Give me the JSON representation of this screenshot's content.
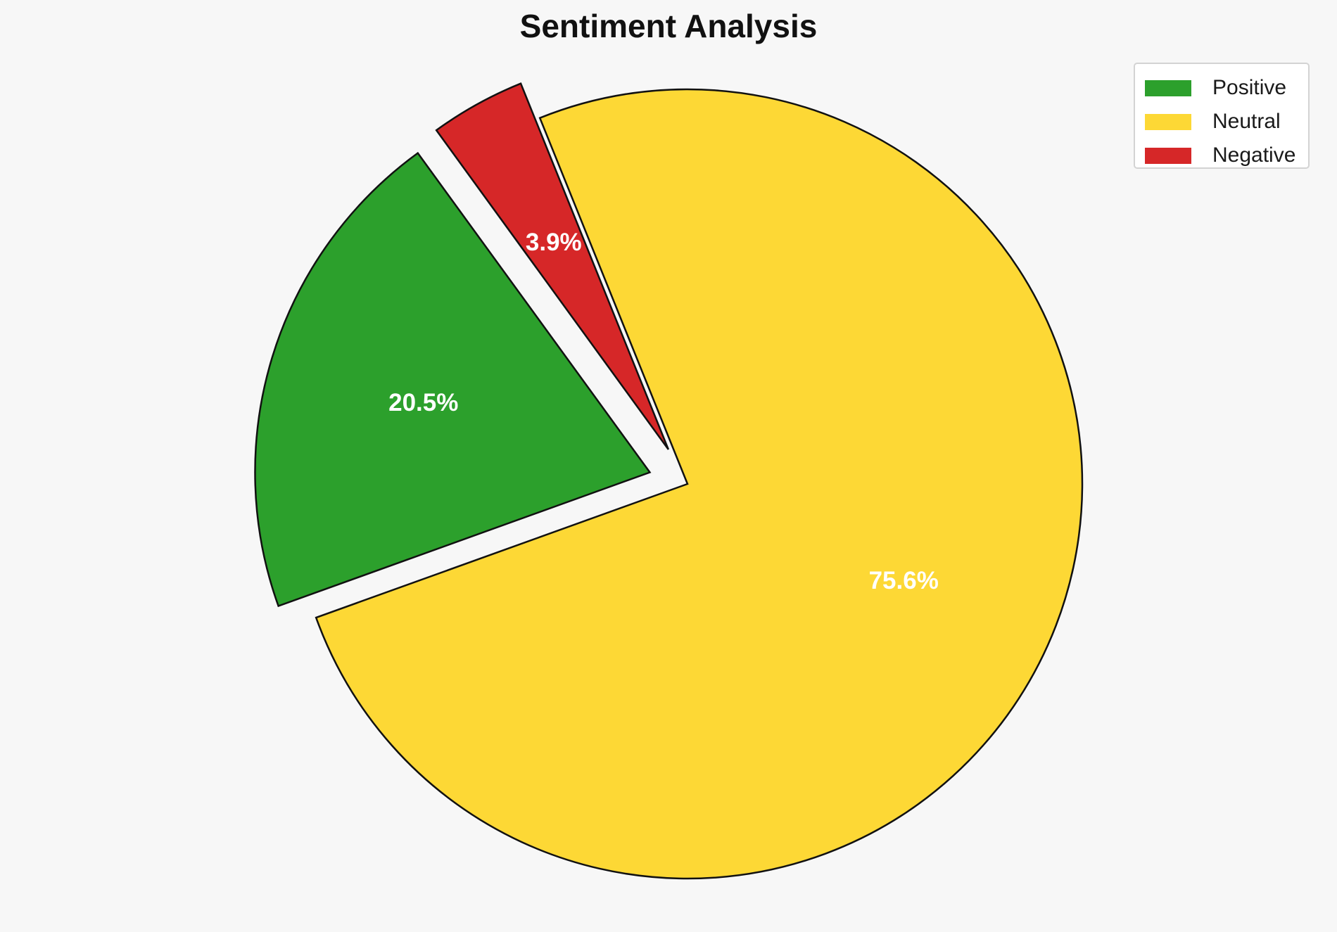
{
  "chart_data": {
    "type": "pie",
    "title": "Sentiment Analysis",
    "categories": [
      "Positive",
      "Neutral",
      "Negative"
    ],
    "values": [
      20.5,
      75.6,
      3.9
    ],
    "value_labels": [
      "20.5%",
      "75.6%",
      "3.9%"
    ],
    "colors": [
      "#2ca02c",
      "#fdd835",
      "#d62728"
    ],
    "exploded": [
      true,
      false,
      true
    ],
    "legend_position": "top-right"
  }
}
